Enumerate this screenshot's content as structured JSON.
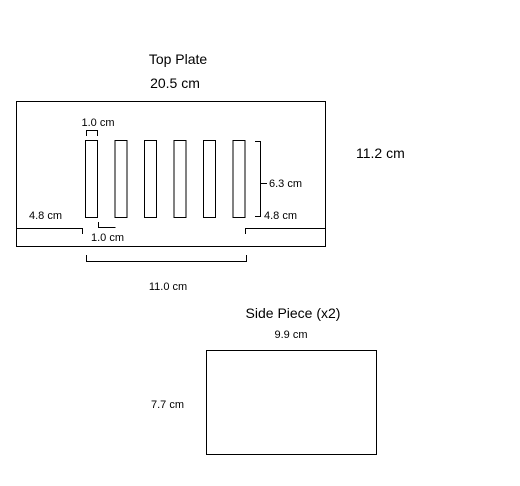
{
  "top_plate": {
    "title": "Top Plate",
    "width_label": "20.5 cm",
    "height_label": "11.2 cm",
    "slot_width_label": "1.0 cm",
    "slot_gap_label": "1.0 cm",
    "slot_length_label": "6.3 cm",
    "left_margin_label": "4.8 cm",
    "right_margin_label": "4.8 cm",
    "slot_span_label": "11.0 cm",
    "slot_count": 6
  },
  "side_piece": {
    "title": "Side Piece (x2)",
    "width_label": "9.9 cm",
    "height_label": "7.7 cm"
  }
}
